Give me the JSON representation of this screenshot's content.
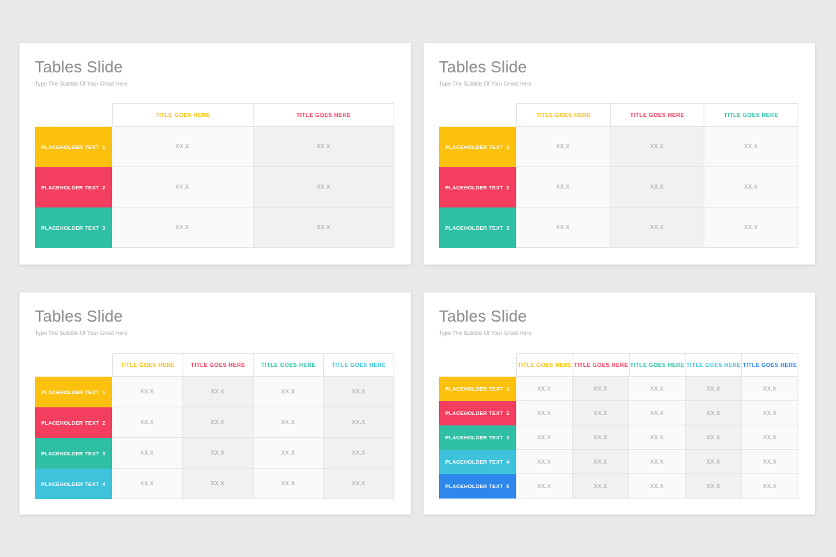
{
  "page": {
    "background": "#E9E9EB"
  },
  "palette": {
    "yellow": "#FCC00E",
    "red": "#F43E5F",
    "teal": "#2FBFA5",
    "cyan": "#3EC3DC",
    "blue": "#2E87EB"
  },
  "slides": [
    {
      "title": "Tables Slide",
      "subtitle": "Type The Subtitle Of Your Great Here",
      "columns": [
        {
          "label": "TITLE GOES HERE",
          "color": "#FCC00E"
        },
        {
          "label": "TITLE GOES HERE",
          "color": "#F43E5F"
        }
      ],
      "rows": [
        {
          "label": "PLACEHOLDER TEXT  1",
          "color": "#FCC00E",
          "values": [
            "XX.X",
            "XX.X"
          ]
        },
        {
          "label": "PLACEHOLDER TEXT  2",
          "color": "#F43E5F",
          "values": [
            "XX.X",
            "XX.X"
          ]
        },
        {
          "label": "PLACEHOLDER TEXT  3",
          "color": "#2FBFA5",
          "values": [
            "XX.X",
            "XX.X"
          ]
        }
      ]
    },
    {
      "title": "Tables Slide",
      "subtitle": "Type The Subtitle Of Your Great Here",
      "columns": [
        {
          "label": "TITLE GOES HERE",
          "color": "#FCC00E"
        },
        {
          "label": "TITLE GOES HERE",
          "color": "#F43E5F"
        },
        {
          "label": "TITLE GOES HERE",
          "color": "#2FBFA5"
        }
      ],
      "rows": [
        {
          "label": "PLACEHOLDER TEXT  1",
          "color": "#FCC00E",
          "values": [
            "XX.X",
            "XX.X",
            "XX.X"
          ]
        },
        {
          "label": "PLACEHOLDER TEXT  2",
          "color": "#F43E5F",
          "values": [
            "XX.X",
            "XX.X",
            "XX.X"
          ]
        },
        {
          "label": "PLACEHOLDER TEXT  3",
          "color": "#2FBFA5",
          "values": [
            "XX.X",
            "XX.X",
            "XX.X"
          ]
        }
      ]
    },
    {
      "title": "Tables Slide",
      "subtitle": "Type The Subtitle Of Your Great Here",
      "columns": [
        {
          "label": "TITLE GOES HERE",
          "color": "#FCC00E"
        },
        {
          "label": "TITLE GOES HERE",
          "color": "#F43E5F"
        },
        {
          "label": "TITLE GOES HERE",
          "color": "#2FBFA5"
        },
        {
          "label": "TITLE GOES HERE",
          "color": "#3EC3DC"
        }
      ],
      "rows": [
        {
          "label": "PLACEHOLDER TEXT  1",
          "color": "#FCC00E",
          "values": [
            "XX.X",
            "XX.X",
            "XX.X",
            "XX.X"
          ]
        },
        {
          "label": "PLACEHOLDER TEXT  2",
          "color": "#F43E5F",
          "values": [
            "XX.X",
            "XX.X",
            "XX.X",
            "XX.X"
          ]
        },
        {
          "label": "PLACEHOLDER TEXT  3",
          "color": "#2FBFA5",
          "values": [
            "XX.X",
            "XX.X",
            "XX.X",
            "XX.X"
          ]
        },
        {
          "label": "PLACEHOLDER TEXT  4",
          "color": "#3EC3DC",
          "values": [
            "XX.X",
            "XX.X",
            "XX.X",
            "XX.X"
          ]
        }
      ]
    },
    {
      "title": "Tables Slide",
      "subtitle": "Type The Subtitle Of Your Great Here",
      "columns": [
        {
          "label": "TITLE GOES HERE",
          "color": "#FCC00E"
        },
        {
          "label": "TITLE GOES HERE",
          "color": "#F43E5F"
        },
        {
          "label": "TITLE GOES HERE",
          "color": "#2FBFA5"
        },
        {
          "label": "TITLE GOES HERE",
          "color": "#3EC3DC"
        },
        {
          "label": "TITLE GOES HERE",
          "color": "#2E87EB"
        }
      ],
      "rows": [
        {
          "label": "PLACEHOLDER TEXT  1",
          "color": "#FCC00E",
          "values": [
            "XX.X",
            "XX.X",
            "XX.X",
            "XX.X",
            "XX.X"
          ]
        },
        {
          "label": "PLACEHOLDER TEXT  2",
          "color": "#F43E5F",
          "values": [
            "XX.X",
            "XX.X",
            "XX.X",
            "XX.X",
            "XX.X"
          ]
        },
        {
          "label": "PLACEHOLDER TEXT  3",
          "color": "#2FBFA5",
          "values": [
            "XX.X",
            "XX.X",
            "XX.X",
            "XX.X",
            "XX.X"
          ]
        },
        {
          "label": "PLACEHOLDER TEXT  4",
          "color": "#3EC3DC",
          "values": [
            "XX.X",
            "XX.X",
            "XX.X",
            "XX.X",
            "XX.X"
          ]
        },
        {
          "label": "PLACEHOLDER TEXT  5",
          "color": "#2E87EB",
          "values": [
            "XX.X",
            "XX.X",
            "XX.X",
            "XX.X",
            "XX.X"
          ]
        }
      ]
    }
  ]
}
